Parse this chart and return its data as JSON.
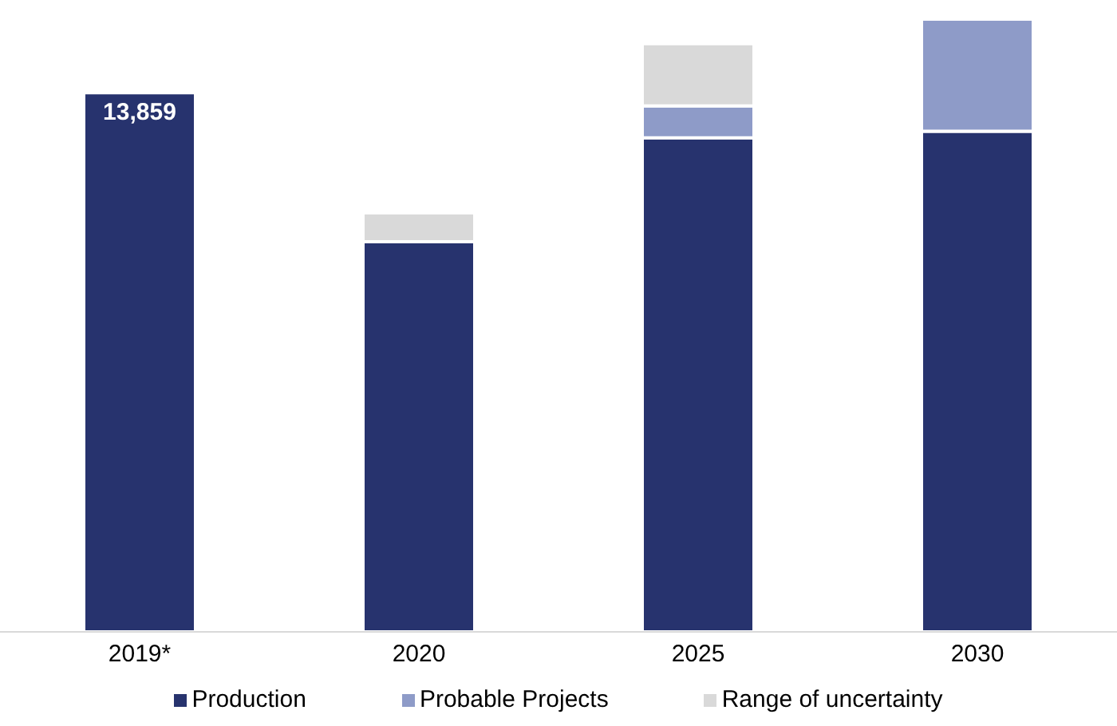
{
  "chart_data": {
    "type": "bar",
    "stacked": true,
    "legend": "bottom",
    "categories": [
      "2019*",
      "2020",
      "2025",
      "2030"
    ],
    "series": [
      {
        "name": "Production",
        "color": "#27336e",
        "values": [
          13859,
          10030,
          12700,
          12870
        ],
        "value_labels": [
          "13,859",
          null,
          null,
          null
        ]
      },
      {
        "name": "Probable Projects",
        "color": "#8e9bc8",
        "values": [
          null,
          null,
          820,
          2880
        ]
      },
      {
        "name": "Range of uncertainty",
        "color": "#d9d9d9",
        "values": [
          null,
          740,
          1600,
          null
        ]
      }
    ]
  }
}
